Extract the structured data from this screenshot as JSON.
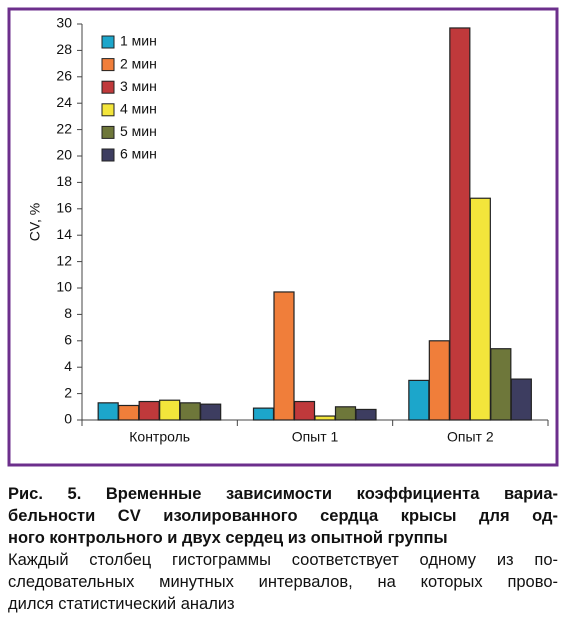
{
  "chart_data": {
    "type": "bar",
    "ylabel": "CV, %",
    "categories": [
      "Контроль",
      "Опыт 1",
      "Опыт 2"
    ],
    "series": [
      {
        "name": "1 мин",
        "color": "#1ca6cb",
        "values": [
          1.3,
          0.9,
          3.0
        ]
      },
      {
        "name": "2 мин",
        "color": "#f07e3a",
        "values": [
          1.1,
          9.7,
          6.0
        ]
      },
      {
        "name": "3 мин",
        "color": "#c0393b",
        "values": [
          1.4,
          1.4,
          29.7
        ]
      },
      {
        "name": "4 мин",
        "color": "#f3e53b",
        "values": [
          1.5,
          0.3,
          16.8
        ]
      },
      {
        "name": "5 мин",
        "color": "#6e773a",
        "values": [
          1.3,
          1.0,
          5.4
        ]
      },
      {
        "name": "6 мин",
        "color": "#3d3d60",
        "values": [
          1.2,
          0.8,
          3.1
        ]
      }
    ],
    "ylim": [
      0,
      30
    ],
    "yticks": [
      0,
      2,
      4,
      6,
      8,
      10,
      12,
      14,
      16,
      18,
      20,
      22,
      24,
      26,
      28,
      30
    ],
    "grid": false,
    "legend": "top-left",
    "caption_title": [
      "Рис. 5. Временные зависимости коэффициента вариа-",
      "бельности CV изолированного сердца крысы для од-",
      "ного контрольного и двух сердец из опытной группы"
    ],
    "caption_body": [
      "Каждый столбец гистограммы соответствует одному из по-",
      "следовательных минутных интервалов, на которых прово-",
      "дился статистический анализ"
    ]
  }
}
